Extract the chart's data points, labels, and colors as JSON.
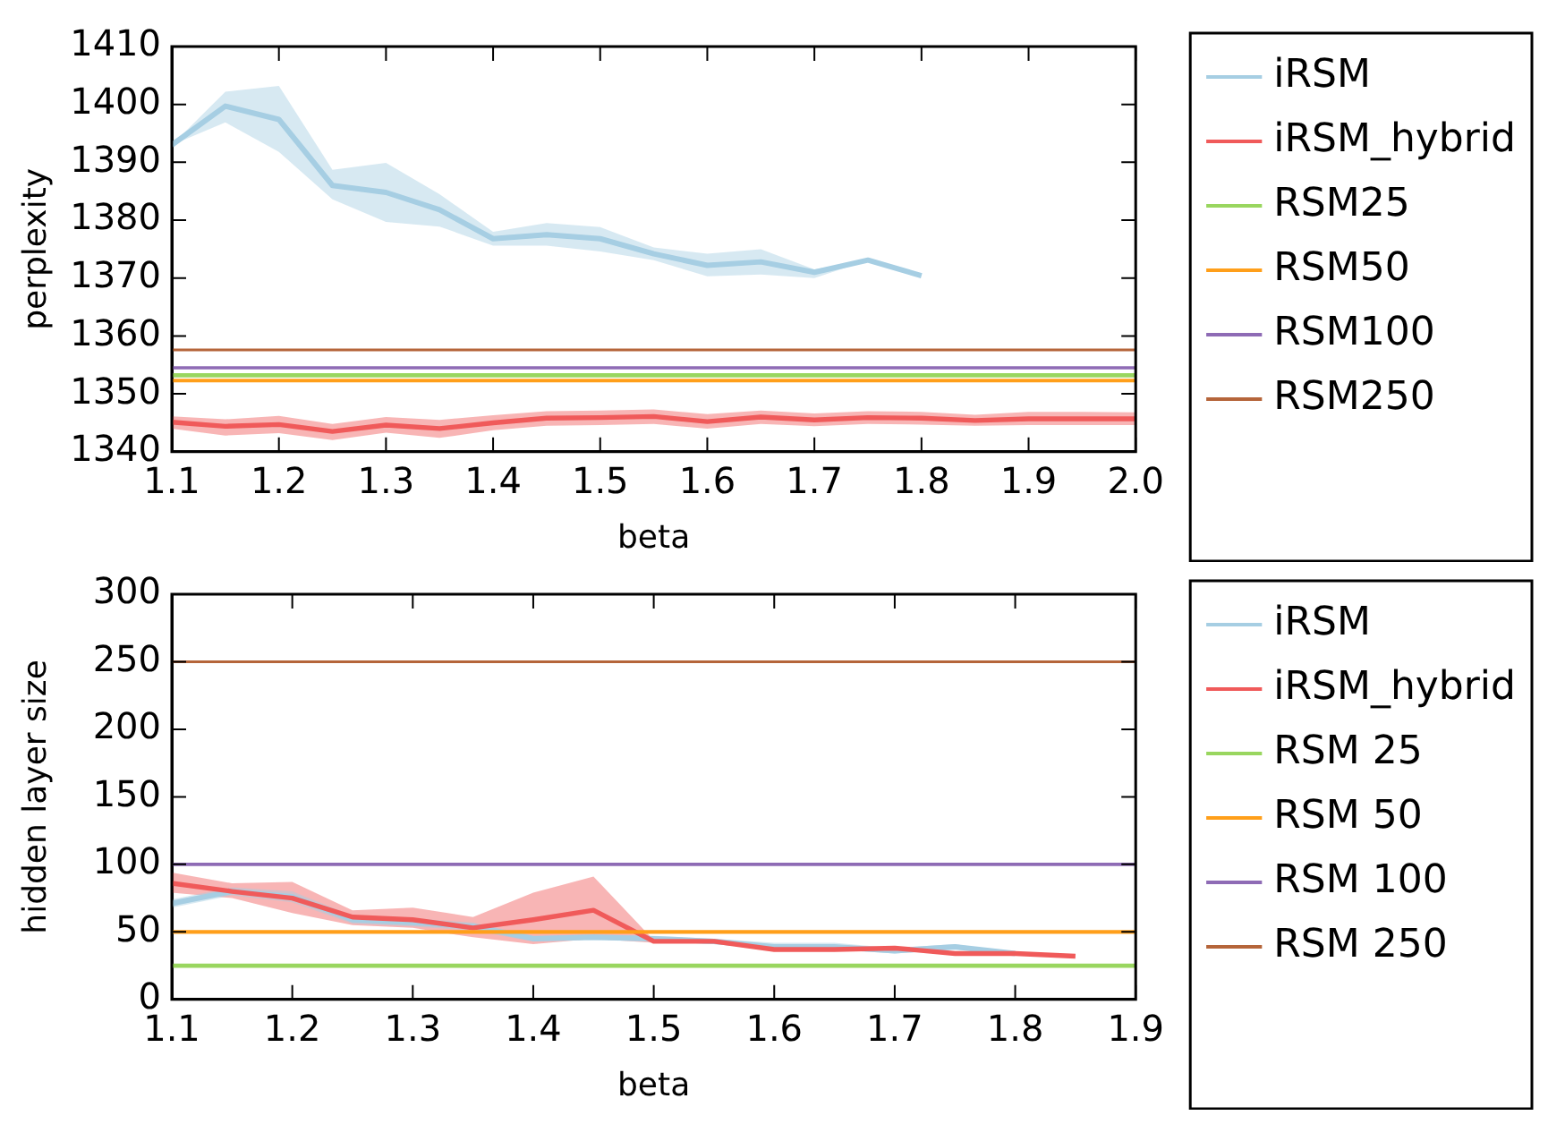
{
  "chart_data": [
    {
      "type": "line",
      "xlabel": "beta",
      "ylabel": "perplexity",
      "xlim": [
        1.1,
        2.0
      ],
      "ylim": [
        1340,
        1410
      ],
      "xticks": [
        1.1,
        1.2,
        1.3,
        1.4,
        1.5,
        1.6,
        1.7,
        1.8,
        1.9,
        {
          "value": 2,
          "label": "2.0"
        }
      ],
      "yticks": [
        1340,
        1350,
        1360,
        1370,
        1380,
        1390,
        1400,
        1410
      ],
      "grid": false,
      "legend": "right",
      "marker": "none",
      "series": [
        {
          "name": "iRSM",
          "color": "#a6cee3",
          "x": [
            1.1,
            1.15,
            1.2,
            1.25,
            1.3,
            1.35,
            1.4,
            1.45,
            1.5,
            1.55,
            1.6,
            1.65,
            1.7,
            1.75,
            1.8
          ],
          "values": [
            1393,
            1399.7,
            1397.4,
            1386,
            1384.8,
            1381.8,
            1376.8,
            1377.5,
            1376.8,
            1374.2,
            1372.2,
            1372.8,
            1371,
            1373.1,
            1370.4
          ],
          "lower": [
            1393,
            1396.9,
            1391.8,
            1383.6,
            1379.7,
            1378.9,
            1375.6,
            1375.6,
            1374.6,
            1373.1,
            1370.3,
            1370.6,
            1370,
            1373.1,
            1370.4
          ],
          "upper": [
            1393,
            1402.2,
            1403.2,
            1388.7,
            1389.9,
            1384.5,
            1378,
            1379.5,
            1378.8,
            1375.3,
            1374.2,
            1375,
            1371.5,
            1373.1,
            1370.4
          ]
        },
        {
          "name": "iRSM_hybrid",
          "color": "#f05a5a",
          "x": [
            1.1,
            1.15,
            1.2,
            1.25,
            1.3,
            1.35,
            1.4,
            1.45,
            1.5,
            1.55,
            1.6,
            1.65,
            1.7,
            1.75,
            1.8,
            1.85,
            1.9,
            1.95,
            2.0
          ],
          "values": [
            1345.1,
            1344.4,
            1344.7,
            1343.5,
            1344.6,
            1344,
            1345,
            1345.8,
            1345.9,
            1346.1,
            1345.2,
            1346,
            1345.5,
            1345.9,
            1345.8,
            1345.4,
            1345.7,
            1345.7,
            1345.7
          ],
          "lower": [
            1344,
            1342.8,
            1343.2,
            1342,
            1343.3,
            1342.4,
            1343.7,
            1344.5,
            1344.6,
            1344.8,
            1344,
            1344.8,
            1344.4,
            1344.8,
            1344.7,
            1344.5,
            1344.6,
            1344.6,
            1344.6
          ],
          "upper": [
            1346.1,
            1345.6,
            1346.2,
            1344.8,
            1346,
            1345.5,
            1346.3,
            1347,
            1347.1,
            1347.3,
            1346.5,
            1347.1,
            1346.6,
            1347,
            1346.9,
            1346.4,
            1346.9,
            1346.9,
            1346.8
          ]
        },
        {
          "name": "RSM25",
          "color": "#99d65f",
          "x": [
            1.1,
            2.0
          ],
          "values": [
            1353.2,
            1353.2
          ]
        },
        {
          "name": "RSM50",
          "color": "#ff9f1a",
          "x": [
            1.1,
            2.0
          ],
          "values": [
            1352.3,
            1352.3
          ]
        },
        {
          "name": "RSM100",
          "color": "#8e6bb5",
          "x": [
            1.1,
            2.0
          ],
          "values": [
            1354.5,
            1354.5
          ]
        },
        {
          "name": "RSM250",
          "color": "#b5653a",
          "x": [
            1.1,
            2.0
          ],
          "values": [
            1357.6,
            1357.6
          ]
        }
      ]
    },
    {
      "type": "line",
      "xlabel": "beta",
      "ylabel": "hidden layer size",
      "xlim": [
        1.1,
        1.9
      ],
      "ylim": [
        0,
        300
      ],
      "xticks": [
        1.1,
        1.2,
        1.3,
        1.4,
        1.5,
        1.6,
        1.7,
        1.8,
        1.9
      ],
      "yticks": [
        0,
        50,
        100,
        150,
        200,
        250,
        300
      ],
      "grid": false,
      "legend": "right",
      "marker": "none",
      "series": [
        {
          "name": "iRSM",
          "color": "#a6cee3",
          "x": [
            1.1,
            1.15,
            1.2,
            1.25,
            1.3,
            1.35,
            1.4,
            1.45,
            1.5,
            1.55,
            1.6,
            1.65,
            1.7,
            1.75,
            1.8
          ],
          "values": [
            71,
            80,
            76,
            59,
            57,
            54,
            45,
            46,
            45,
            43,
            39,
            39,
            36,
            39,
            34
          ],
          "lower": [
            68,
            77,
            72,
            56,
            54,
            51,
            43,
            44,
            43,
            41,
            37,
            37,
            34,
            37,
            34
          ],
          "upper": [
            74,
            83,
            80,
            62,
            60,
            57,
            47,
            48,
            47,
            45,
            42,
            42,
            38,
            41,
            34
          ]
        },
        {
          "name": "iRSM_hybrid",
          "color": "#f05a5a",
          "x": [
            1.1,
            1.15,
            1.2,
            1.25,
            1.3,
            1.35,
            1.4,
            1.45,
            1.5,
            1.55,
            1.6,
            1.65,
            1.7,
            1.75,
            1.8,
            1.85
          ],
          "values": [
            86,
            80,
            75,
            61,
            59,
            53,
            59,
            66,
            43,
            43,
            37,
            37,
            38,
            34,
            34,
            32
          ],
          "lower": [
            79,
            75,
            64,
            55,
            53,
            46,
            41,
            45,
            42,
            42,
            36,
            36,
            37,
            33,
            33,
            32
          ],
          "upper": [
            94,
            86,
            87,
            66,
            68,
            61,
            79,
            91,
            44,
            44,
            38,
            38,
            39,
            35,
            35,
            32
          ]
        },
        {
          "name": "RSM 25",
          "color": "#99d65f",
          "x": [
            1.1,
            1.9
          ],
          "values": [
            25,
            25
          ]
        },
        {
          "name": "RSM 50",
          "color": "#ff9f1a",
          "x": [
            1.1,
            1.9
          ],
          "values": [
            50,
            50
          ]
        },
        {
          "name": "RSM 100",
          "color": "#8e6bb5",
          "x": [
            1.1,
            1.9
          ],
          "values": [
            100,
            100
          ]
        },
        {
          "name": "RSM 250",
          "color": "#b5653a",
          "x": [
            1.1,
            1.9
          ],
          "values": [
            250,
            250
          ]
        }
      ]
    }
  ]
}
